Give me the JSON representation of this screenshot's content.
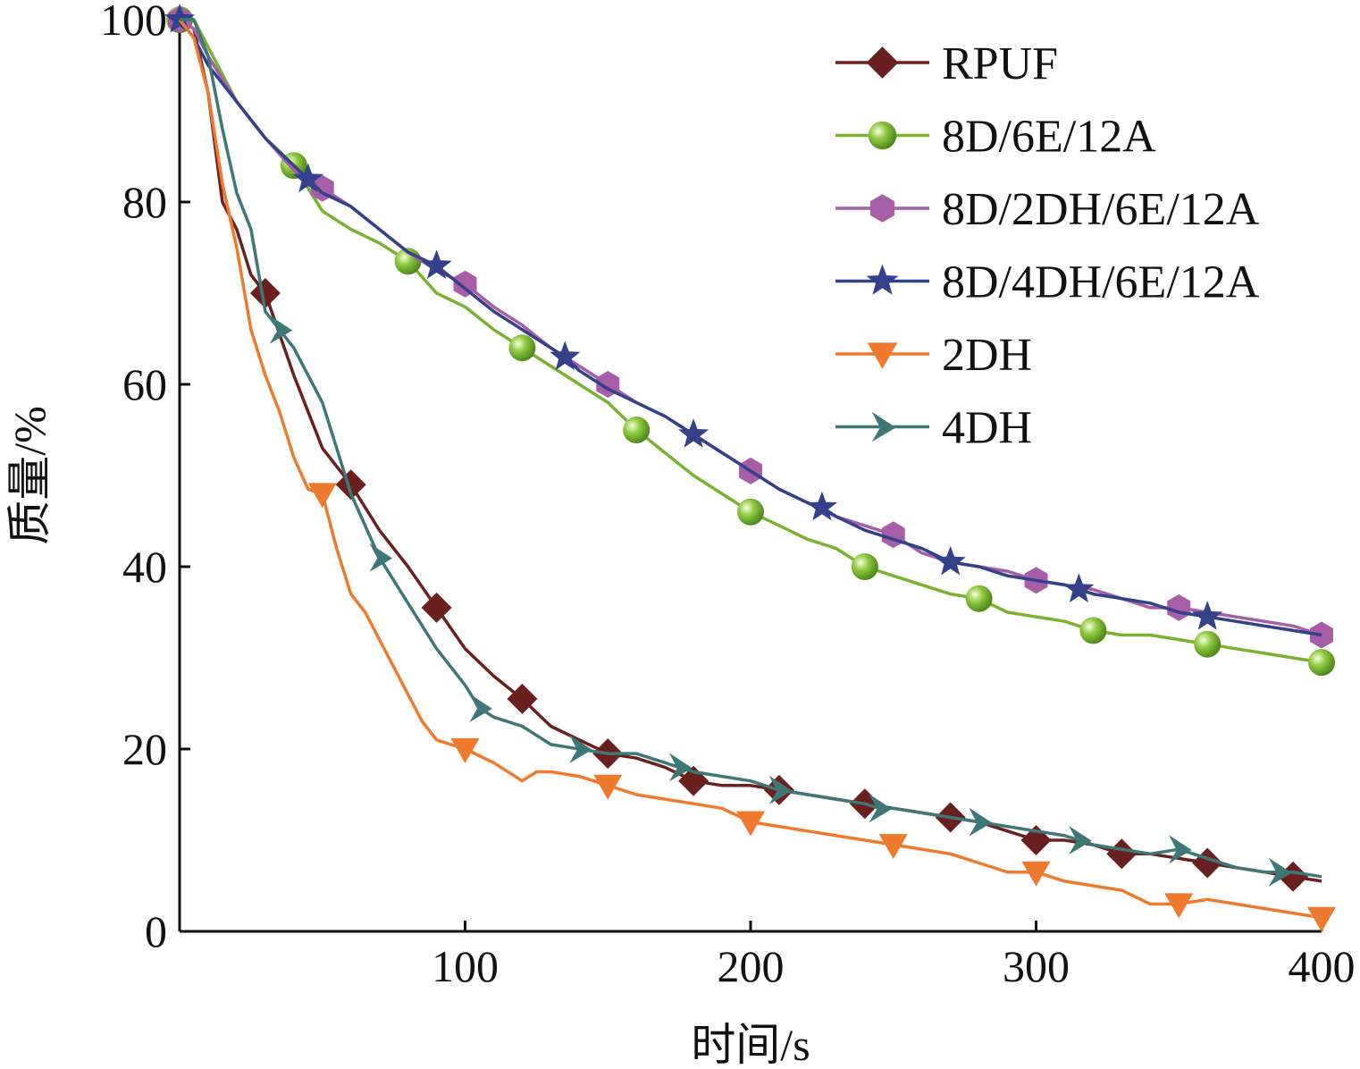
{
  "chart_data": {
    "type": "line",
    "title": "",
    "xlabel": "时间/s",
    "ylabel": "质量/%",
    "xlim": [
      0,
      400
    ],
    "ylim": [
      0,
      100
    ],
    "x_ticks": [
      {
        "value": 100,
        "label": "100"
      },
      {
        "value": 200,
        "label": "200"
      },
      {
        "value": 300,
        "label": "300"
      },
      {
        "value": 400,
        "label": "400"
      }
    ],
    "y_ticks": [
      {
        "value": 0,
        "label": "0"
      },
      {
        "value": 20,
        "label": "20"
      },
      {
        "value": 40,
        "label": "40"
      },
      {
        "value": 60,
        "label": "60"
      },
      {
        "value": 80,
        "label": "80"
      },
      {
        "value": 100,
        "label": "100"
      }
    ],
    "grid": false,
    "legend_position": "top-right",
    "series": [
      {
        "name": "RPUF",
        "color": "#6b2020",
        "marker": "diamond",
        "x": [
          0,
          5,
          10,
          15,
          20,
          25,
          30,
          40,
          50,
          60,
          70,
          80,
          90,
          100,
          110,
          120,
          130,
          140,
          150,
          160,
          170,
          180,
          190,
          200,
          210,
          220,
          230,
          240,
          250,
          260,
          270,
          280,
          290,
          300,
          310,
          320,
          330,
          340,
          350,
          360,
          370,
          380,
          390,
          400
        ],
        "y": [
          100,
          99,
          92,
          80,
          77,
          72,
          70,
          61,
          53,
          49,
          44,
          40,
          35.5,
          31,
          28,
          25.5,
          22.5,
          21,
          19.5,
          19,
          18,
          16.5,
          16,
          16,
          15.5,
          15,
          14.5,
          14,
          13.5,
          13,
          12.5,
          12,
          11,
          10,
          10,
          9.5,
          8.5,
          8.5,
          8,
          7.5,
          7,
          6.5,
          6,
          5.5
        ],
        "marker_x": [
          30,
          60,
          90,
          120,
          150,
          180,
          210,
          240,
          270,
          300,
          330,
          360,
          390
        ]
      },
      {
        "name": "8D/6E/12A",
        "color": "#79b231",
        "marker": "sphere",
        "x": [
          0,
          5,
          10,
          20,
          30,
          40,
          50,
          60,
          70,
          80,
          90,
          100,
          110,
          120,
          130,
          140,
          150,
          160,
          170,
          180,
          190,
          200,
          210,
          220,
          230,
          240,
          250,
          260,
          270,
          280,
          290,
          300,
          310,
          320,
          330,
          340,
          350,
          360,
          370,
          380,
          390,
          400
        ],
        "y": [
          100,
          100,
          97,
          91,
          87,
          84,
          79,
          77,
          75.5,
          73.5,
          70,
          68.5,
          66,
          64,
          62,
          60,
          58,
          55,
          52.5,
          50,
          48,
          46,
          44.5,
          43,
          42,
          40,
          39,
          38,
          37,
          36.5,
          35,
          34.5,
          34,
          33,
          32.5,
          32.5,
          32,
          31.5,
          31,
          30.5,
          30,
          29.5
        ],
        "marker_x": [
          0,
          40,
          80,
          120,
          160,
          200,
          240,
          280,
          320,
          360,
          400
        ]
      },
      {
        "name": "8D/2DH/6E/12A",
        "color": "#a65ea7",
        "marker": "hexagon",
        "x": [
          0,
          5,
          10,
          20,
          30,
          40,
          50,
          60,
          70,
          80,
          90,
          100,
          110,
          120,
          130,
          140,
          150,
          160,
          170,
          180,
          190,
          200,
          210,
          220,
          230,
          240,
          250,
          260,
          270,
          280,
          290,
          300,
          310,
          320,
          330,
          340,
          350,
          360,
          370,
          380,
          390,
          400
        ],
        "y": [
          100,
          99,
          96,
          91,
          87,
          83.5,
          81.5,
          79.5,
          77,
          74.5,
          72.5,
          71,
          68.5,
          66.5,
          64,
          62,
          60,
          58,
          56.5,
          54.5,
          52.5,
          50.5,
          48.5,
          47,
          45.5,
          44.5,
          43.5,
          41.5,
          40.5,
          40,
          39.5,
          38.5,
          38,
          37.5,
          36.5,
          35.5,
          35.5,
          35,
          34.5,
          34,
          33.5,
          32.5
        ],
        "marker_x": [
          0,
          50,
          100,
          150,
          200,
          250,
          300,
          350,
          400
        ]
      },
      {
        "name": "8D/4DH/6E/12A",
        "color": "#33408a",
        "marker": "star",
        "x": [
          0,
          5,
          10,
          20,
          30,
          40,
          45,
          50,
          60,
          70,
          80,
          90,
          100,
          110,
          120,
          130,
          135,
          140,
          150,
          160,
          170,
          180,
          190,
          200,
          210,
          220,
          225,
          230,
          240,
          250,
          260,
          270,
          280,
          290,
          300,
          310,
          315,
          320,
          330,
          340,
          350,
          360,
          370,
          380,
          390,
          400
        ],
        "y": [
          100,
          98,
          95,
          91,
          87,
          84,
          82.5,
          81,
          79.5,
          77,
          74.5,
          73,
          70.5,
          68,
          66,
          64,
          63,
          61.5,
          59.5,
          58,
          56.5,
          54.5,
          52.5,
          50.5,
          48.5,
          47,
          46.5,
          45.5,
          44,
          43,
          42,
          40.5,
          40,
          39,
          38.5,
          38,
          37.5,
          37,
          36.5,
          36,
          35,
          34.5,
          34,
          33.5,
          33,
          32.5
        ],
        "marker_x": [
          0,
          45,
          90,
          135,
          180,
          225,
          270,
          315,
          360
        ]
      },
      {
        "name": "2DH",
        "color": "#ef7a2e",
        "marker": "triangle-down",
        "x": [
          0,
          5,
          10,
          15,
          20,
          25,
          30,
          35,
          40,
          45,
          50,
          55,
          60,
          65,
          70,
          75,
          80,
          85,
          90,
          95,
          100,
          110,
          120,
          125,
          130,
          140,
          150,
          160,
          170,
          180,
          190,
          200,
          210,
          220,
          230,
          240,
          250,
          260,
          270,
          280,
          290,
          300,
          310,
          320,
          330,
          340,
          350,
          360,
          370,
          380,
          390,
          400
        ],
        "y": [
          100,
          98,
          92,
          82,
          75,
          66,
          61,
          57,
          52,
          48.5,
          48,
          42,
          37,
          35,
          32,
          29,
          26,
          23,
          21,
          20.5,
          20,
          18.5,
          16.5,
          17.5,
          17.5,
          17,
          16,
          15,
          14.5,
          14,
          13.5,
          12,
          11.5,
          11,
          10.5,
          10,
          9.5,
          9,
          8.5,
          7.5,
          6.5,
          6.5,
          5.5,
          5,
          4.5,
          3,
          3,
          3.5,
          3,
          2.5,
          2,
          1.5
        ],
        "marker_x": [
          50,
          100,
          150,
          200,
          250,
          300,
          350,
          400
        ]
      },
      {
        "name": "4DH",
        "color": "#3d7876",
        "marker": "notch",
        "x": [
          0,
          5,
          10,
          15,
          20,
          25,
          30,
          35,
          40,
          50,
          60,
          70,
          80,
          90,
          100,
          105,
          110,
          120,
          130,
          140,
          150,
          160,
          170,
          175,
          180,
          190,
          200,
          210,
          220,
          230,
          240,
          245,
          250,
          260,
          270,
          280,
          290,
          300,
          310,
          315,
          320,
          330,
          340,
          350,
          360,
          370,
          380,
          385,
          390,
          400
        ],
        "y": [
          100,
          100,
          96,
          88,
          81,
          77,
          68,
          66,
          64,
          58,
          48,
          41,
          36,
          31,
          27,
          24.5,
          23.5,
          22.5,
          20.5,
          20,
          19.5,
          19.5,
          18.5,
          18,
          17.5,
          17,
          16.5,
          15.5,
          15,
          14.5,
          14,
          13.5,
          13.5,
          13,
          12.5,
          12,
          11.5,
          11,
          10.5,
          10,
          9.5,
          9,
          8.5,
          9,
          8,
          7,
          6.5,
          6.5,
          6.5,
          6
        ],
        "marker_x": [
          35,
          70,
          105,
          140,
          175,
          210,
          245,
          280,
          315,
          350,
          385
        ]
      }
    ]
  }
}
